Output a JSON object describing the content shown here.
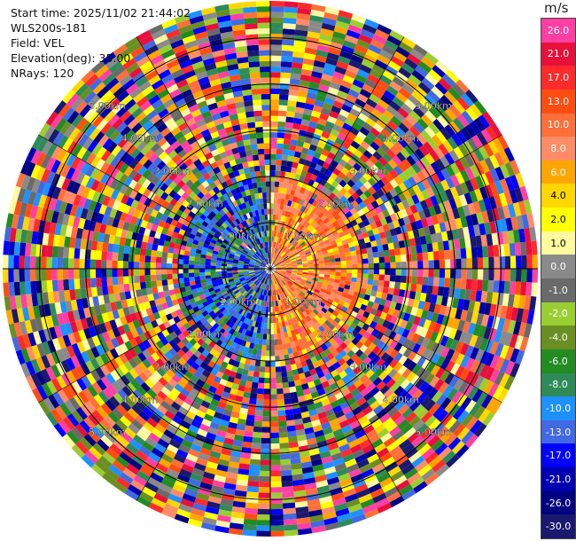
{
  "header": {
    "start_time": "Start time: 2025/11/02 21:44:02",
    "instrument": "WLS200s-181",
    "field": "Field: VEL",
    "elevation": "Elevation(deg): 35.00",
    "nrays": "NRays: 120"
  },
  "colorbar": {
    "unit": "m/s",
    "levels": [
      {
        "label": "26.0",
        "color": "#ff3fa4"
      },
      {
        "label": "21.0",
        "color": "#e8103a"
      },
      {
        "label": "17.0",
        "color": "#ff2a2a"
      },
      {
        "label": "13.0",
        "color": "#ff4d12"
      },
      {
        "label": "10.0",
        "color": "#ff6f3a"
      },
      {
        "label": "8.0",
        "color": "#ff8c66"
      },
      {
        "label": "6.0",
        "color": "#ffa500"
      },
      {
        "label": "4.0",
        "color": "#ffd700"
      },
      {
        "label": "2.0",
        "color": "#ffff00"
      },
      {
        "label": "1.0",
        "color": "#fffaa0"
      },
      {
        "label": "0.0",
        "color": "#8a8a8a"
      },
      {
        "label": "-1.0",
        "color": "#6a6a6a"
      },
      {
        "label": "-2.0",
        "color": "#9acd32"
      },
      {
        "label": "-4.0",
        "color": "#6b8e23"
      },
      {
        "label": "-6.0",
        "color": "#228b22"
      },
      {
        "label": "-8.0",
        "color": "#2e8b57"
      },
      {
        "label": "-10.0",
        "color": "#1e90ff"
      },
      {
        "label": "-13.0",
        "color": "#4169e1"
      },
      {
        "label": "-17.0",
        "color": "#0000ff"
      },
      {
        "label": "-21.0",
        "color": "#0000b0"
      },
      {
        "label": "-26.0",
        "color": "#000080"
      },
      {
        "label": "-30.0",
        "color": "#191970"
      }
    ]
  },
  "chart_data": {
    "type": "heatmap",
    "projection": "polar-ppi",
    "nrays": 120,
    "range_rings_km": [
      1,
      2,
      3,
      4,
      5
    ],
    "ring_labels": [
      "1.00km",
      "2.00km",
      "3.00km",
      "4.00km",
      "5.00km"
    ],
    "max_range_km": 5.8,
    "value_range": [
      -30,
      26
    ]
  }
}
